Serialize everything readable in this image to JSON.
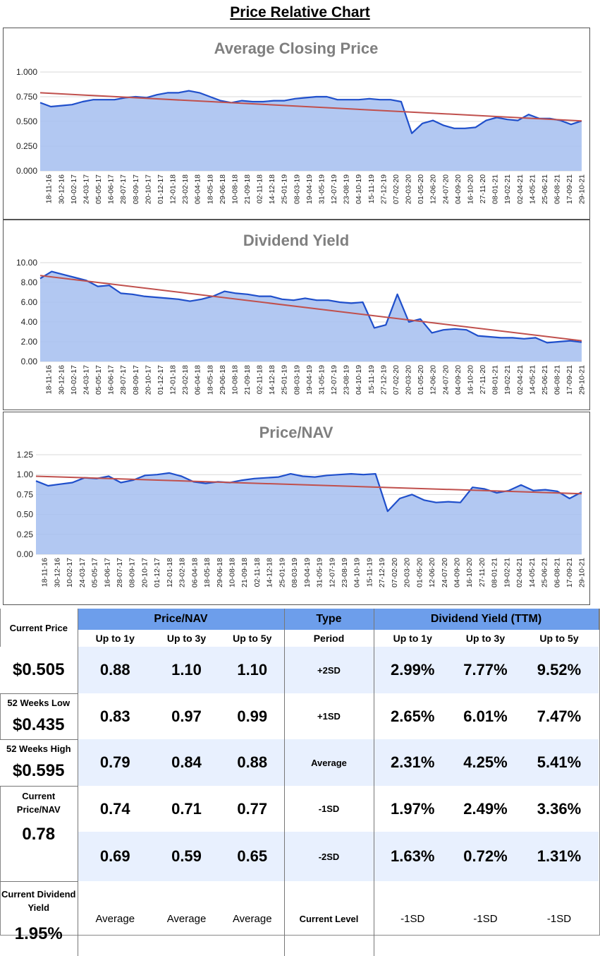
{
  "page_title": "Price Relative Chart",
  "colors": {
    "area_fill": "#a4bef0",
    "series_line": "#1f4fcb",
    "trend_line": "#c0504d",
    "header_bg": "#6d9eeb",
    "row_shade": "#e8f0fe"
  },
  "chart_data": [
    {
      "type": "area",
      "title": "Average Closing Price",
      "ylim": [
        0,
        1
      ],
      "yticks": [
        "0.000",
        "0.250",
        "0.500",
        "0.750",
        "1.000"
      ],
      "xticks": [
        "18-11-16",
        "30-12-16",
        "10-02-17",
        "24-03-17",
        "05-05-17",
        "16-06-17",
        "28-07-17",
        "08-09-17",
        "20-10-17",
        "01-12-17",
        "12-01-18",
        "23-02-18",
        "06-04-18",
        "18-05-18",
        "29-06-18",
        "10-08-18",
        "21-09-18",
        "02-11-18",
        "14-12-18",
        "25-01-19",
        "08-03-19",
        "19-04-19",
        "31-05-19",
        "12-07-19",
        "23-08-19",
        "04-10-19",
        "15-11-19",
        "27-12-19",
        "07-02-20",
        "20-03-20",
        "01-05-20",
        "12-06-20",
        "24-07-20",
        "04-09-20",
        "16-10-20",
        "27-11-20",
        "08-01-21",
        "19-02-21",
        "02-04-21",
        "14-05-21",
        "25-06-21",
        "06-08-21",
        "17-09-21",
        "29-10-21"
      ],
      "series": [
        {
          "name": "Average Closing Price",
          "values": [
            0.69,
            0.65,
            0.66,
            0.67,
            0.7,
            0.72,
            0.72,
            0.72,
            0.74,
            0.75,
            0.74,
            0.77,
            0.79,
            0.79,
            0.81,
            0.79,
            0.75,
            0.71,
            0.69,
            0.71,
            0.7,
            0.7,
            0.71,
            0.71,
            0.73,
            0.74,
            0.75,
            0.75,
            0.72,
            0.72,
            0.72,
            0.73,
            0.72,
            0.72,
            0.7,
            0.38,
            0.48,
            0.51,
            0.46,
            0.43,
            0.43,
            0.44,
            0.51,
            0.54,
            0.52,
            0.51,
            0.57,
            0.53,
            0.53,
            0.51,
            0.47,
            0.505
          ]
        }
      ],
      "trend": [
        0.79,
        0.505
      ]
    },
    {
      "type": "area",
      "title": "Dividend Yield",
      "ylim": [
        0,
        10
      ],
      "yticks": [
        "0.00",
        "2.00",
        "4.00",
        "6.00",
        "8.00",
        "10.00"
      ],
      "xticks": [
        "18-11-16",
        "30-12-16",
        "10-02-17",
        "24-03-17",
        "05-05-17",
        "16-06-17",
        "28-07-17",
        "08-09-17",
        "20-10-17",
        "01-12-17",
        "12-01-18",
        "23-02-18",
        "06-04-18",
        "18-05-18",
        "29-06-18",
        "10-08-18",
        "21-09-18",
        "02-11-18",
        "14-12-18",
        "25-01-19",
        "08-03-19",
        "19-04-19",
        "31-05-19",
        "12-07-19",
        "23-08-19",
        "04-10-19",
        "15-11-19",
        "27-12-19",
        "07-02-20",
        "20-03-20",
        "01-05-20",
        "12-06-20",
        "24-07-20",
        "04-09-20",
        "16-10-20",
        "27-11-20",
        "08-01-21",
        "19-02-21",
        "02-04-21",
        "14-05-21",
        "25-06-21",
        "06-08-21",
        "17-09-21",
        "29-10-21"
      ],
      "series": [
        {
          "name": "Dividend Yield",
          "values": [
            8.4,
            9.1,
            8.8,
            8.5,
            8.2,
            7.6,
            7.7,
            6.9,
            6.8,
            6.6,
            6.5,
            6.4,
            6.3,
            6.1,
            6.3,
            6.6,
            7.1,
            6.9,
            6.8,
            6.6,
            6.6,
            6.3,
            6.2,
            6.4,
            6.2,
            6.2,
            6.0,
            5.9,
            6.0,
            3.4,
            3.7,
            6.8,
            4.0,
            4.3,
            2.9,
            3.2,
            3.3,
            3.2,
            2.6,
            2.5,
            2.4,
            2.4,
            2.3,
            2.4,
            1.9,
            2.0,
            2.1,
            1.95
          ]
        }
      ],
      "trend": [
        8.7,
        2.1
      ]
    },
    {
      "type": "area",
      "title": "Price/NAV",
      "ylim": [
        0,
        1.25
      ],
      "yticks": [
        "0.00",
        "0.25",
        "0.50",
        "0.75",
        "1.00",
        "1.25"
      ],
      "xticks": [
        "18-11-16",
        "30-12-16",
        "10-02-17",
        "24-03-17",
        "05-05-17",
        "16-06-17",
        "28-07-17",
        "08-09-17",
        "20-10-17",
        "01-12-17",
        "12-01-18",
        "23-02-18",
        "06-04-18",
        "18-05-18",
        "29-06-18",
        "10-08-18",
        "21-09-18",
        "02-11-18",
        "14-12-18",
        "25-01-19",
        "08-03-19",
        "19-04-19",
        "31-05-19",
        "12-07-19",
        "23-08-19",
        "04-10-19",
        "15-11-19",
        "27-12-19",
        "07-02-20",
        "20-03-20",
        "01-05-20",
        "12-06-20",
        "24-07-20",
        "04-09-20",
        "16-10-20",
        "27-11-20",
        "08-01-21",
        "19-02-21",
        "02-04-21",
        "14-05-21",
        "25-06-21",
        "06-08-21",
        "17-09-21",
        "29-10-21"
      ],
      "series": [
        {
          "name": "Price/NAV",
          "values": [
            0.92,
            0.86,
            0.88,
            0.9,
            0.96,
            0.95,
            0.98,
            0.9,
            0.93,
            0.99,
            1.0,
            1.02,
            0.98,
            0.91,
            0.89,
            0.91,
            0.9,
            0.93,
            0.95,
            0.96,
            0.97,
            1.01,
            0.98,
            0.97,
            0.99,
            1.0,
            1.01,
            1.0,
            1.01,
            0.54,
            0.7,
            0.75,
            0.68,
            0.65,
            0.66,
            0.65,
            0.84,
            0.82,
            0.77,
            0.8,
            0.87,
            0.8,
            0.81,
            0.79,
            0.7,
            0.78
          ]
        }
      ],
      "trend": [
        0.98,
        0.76
      ]
    }
  ],
  "table": {
    "price_nav_header": "Price/NAV",
    "type_header": "Type",
    "dividend_header": "Dividend Yield (TTM)",
    "col_labels": [
      "Up to 1y",
      "Up to 3y",
      "Up to 5y"
    ],
    "period_label": "Period",
    "rows": [
      {
        "type": "+2SD",
        "nav": [
          "0.88",
          "1.10",
          "1.10"
        ],
        "yield": [
          "2.99%",
          "7.77%",
          "9.52%"
        ]
      },
      {
        "type": "+1SD",
        "nav": [
          "0.83",
          "0.97",
          "0.99"
        ],
        "yield": [
          "2.65%",
          "6.01%",
          "7.47%"
        ]
      },
      {
        "type": "Average",
        "nav": [
          "0.79",
          "0.84",
          "0.88"
        ],
        "yield": [
          "2.31%",
          "4.25%",
          "5.41%"
        ]
      },
      {
        "type": "-1SD",
        "nav": [
          "0.74",
          "0.71",
          "0.77"
        ],
        "yield": [
          "1.97%",
          "2.49%",
          "3.36%"
        ]
      },
      {
        "type": "-2SD",
        "nav": [
          "0.69",
          "0.59",
          "0.65"
        ],
        "yield": [
          "1.63%",
          "0.72%",
          "1.31%"
        ]
      }
    ],
    "current_level": {
      "type": "Current Level",
      "nav": [
        "Average",
        "Average",
        "Average"
      ],
      "yield": [
        "-1SD",
        "-1SD",
        "-1SD"
      ]
    }
  },
  "stats": {
    "current_price": {
      "label": "Current Price",
      "value": "$0.505"
    },
    "low_52w": {
      "label": "52 Weeks Low",
      "value": "$0.435"
    },
    "high_52w": {
      "label": "52 Weeks High",
      "value": "$0.595"
    },
    "current_nav": {
      "label": "Current Price/NAV",
      "value": "0.78"
    },
    "current_yield": {
      "label": "Current Dividend Yield",
      "value": "1.95%"
    }
  }
}
